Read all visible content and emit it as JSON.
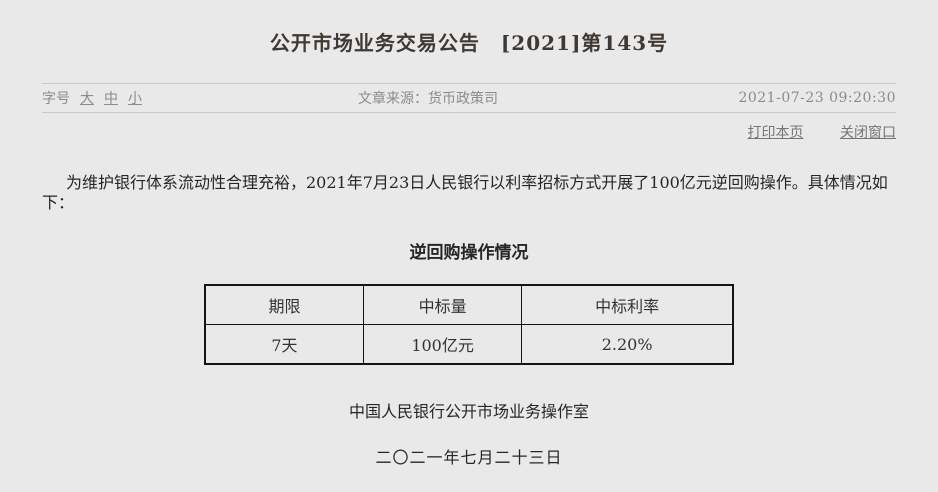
{
  "page": {
    "title": "公开市场业务交易公告　[2021]第143号"
  },
  "meta": {
    "font_size_label": "字号",
    "font_sizes": [
      "大",
      "中",
      "小"
    ],
    "source_label": "文章来源：",
    "source": "货币政策司",
    "timestamp": "2021-07-23 09:20:30"
  },
  "actions": {
    "print_label": "打印本页",
    "close_label": "关闭窗口"
  },
  "article": {
    "paragraph": "为维护银行体系流动性合理充裕，2021年7月23日人民银行以利率招标方式开展了100亿元逆回购操作。具体情况如下：",
    "table_title": "逆回购操作情况",
    "signature": "中国人民银行公开市场业务操作室",
    "date": "二〇二一年七月二十三日"
  },
  "table": {
    "headers": [
      "期限",
      "中标量",
      "中标利率"
    ],
    "rows": [
      [
        "7天",
        "100亿元",
        "2.20%"
      ]
    ]
  },
  "colors": {
    "background": "#e9e9e9",
    "title_text": "#3f3833",
    "meta_text": "#8b8b8b",
    "link_text": "#757575",
    "body_text": "#262626",
    "table_border": "#141414",
    "divider": "#c9c9c9"
  }
}
